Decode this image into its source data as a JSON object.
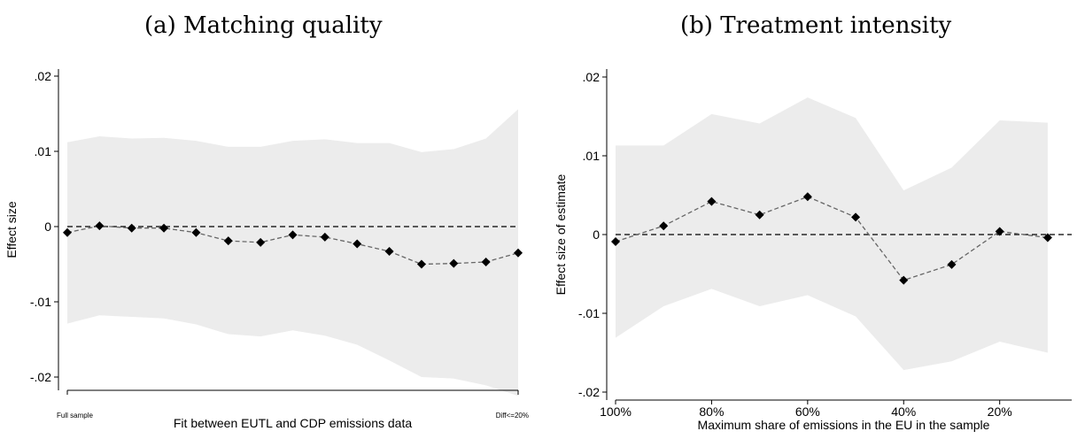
{
  "chart_data": [
    {
      "type": "line",
      "title": "(a) Matching quality",
      "xlabel": "Fit between EUTL and CDP emissions data",
      "ylabel": "Effect size",
      "ylim": [
        -0.022,
        0.021
      ],
      "yticks": [
        0.02,
        0.01,
        0,
        -0.01,
        -0.02
      ],
      "ytick_labels": [
        ".02",
        ".01",
        "0",
        "-.01",
        "-.02"
      ],
      "xtick_labels": [
        "Full sample",
        "Diff<=20%"
      ],
      "reference_line": 0,
      "colors": {
        "band": "#ececec",
        "line": "#666666",
        "marker": "#000000"
      },
      "x": [
        1,
        2,
        3,
        4,
        5,
        6,
        7,
        8,
        9,
        10,
        11,
        12,
        13,
        14,
        15
      ],
      "series": [
        {
          "values": [
            -0.0008,
            0.0001,
            -0.0002,
            -0.0002,
            -0.0008,
            -0.0019,
            -0.0021,
            -0.0011,
            -0.0014,
            -0.0023,
            -0.0033,
            -0.005,
            -0.0049,
            -0.0047,
            -0.0035
          ],
          "ci_upper": [
            0.0112,
            0.012,
            0.0117,
            0.0118,
            0.0114,
            0.0106,
            0.0106,
            0.0114,
            0.0116,
            0.0111,
            0.0111,
            0.0099,
            0.0103,
            0.0117,
            0.0156
          ],
          "ci_lower": [
            -0.0129,
            -0.0118,
            -0.012,
            -0.0122,
            -0.013,
            -0.0143,
            -0.0146,
            -0.0138,
            -0.0145,
            -0.0157,
            -0.0178,
            -0.02,
            -0.0202,
            -0.0211,
            -0.0225
          ]
        }
      ]
    },
    {
      "type": "line",
      "title": "(b) Treatment intensity",
      "xlabel": "Maximum share of emissions in the EU in the sample",
      "ylabel": "Effect size of estimate",
      "ylim": [
        -0.021,
        0.021
      ],
      "yticks": [
        0.02,
        0.01,
        0,
        -0.01,
        -0.02
      ],
      "ytick_labels": [
        ".02",
        ".01",
        "0",
        "-.01",
        "-.02"
      ],
      "x_direction": "reversed",
      "xlim": [
        100,
        5
      ],
      "xticks": [
        100,
        80,
        60,
        40,
        20
      ],
      "xtick_labels": [
        "100%",
        "80%",
        "60%",
        "40%",
        "20%"
      ],
      "reference_line": 0,
      "colors": {
        "band": "#ececec",
        "line": "#666666",
        "marker": "#000000"
      },
      "x": [
        100,
        90,
        80,
        70,
        60,
        50,
        40,
        30,
        20,
        10
      ],
      "series": [
        {
          "values": [
            -0.0009,
            0.0011,
            0.0042,
            0.0025,
            0.0048,
            0.0022,
            -0.0058,
            -0.0038,
            0.0004,
            -0.0004
          ],
          "ci_upper": [
            0.0113,
            0.0113,
            0.0153,
            0.0141,
            0.0174,
            0.0148,
            0.0056,
            0.0085,
            0.0145,
            0.0142
          ],
          "ci_lower": [
            -0.0131,
            -0.0091,
            -0.0069,
            -0.0091,
            -0.0077,
            -0.0104,
            -0.0172,
            -0.0161,
            -0.0136,
            -0.015
          ]
        }
      ]
    }
  ]
}
